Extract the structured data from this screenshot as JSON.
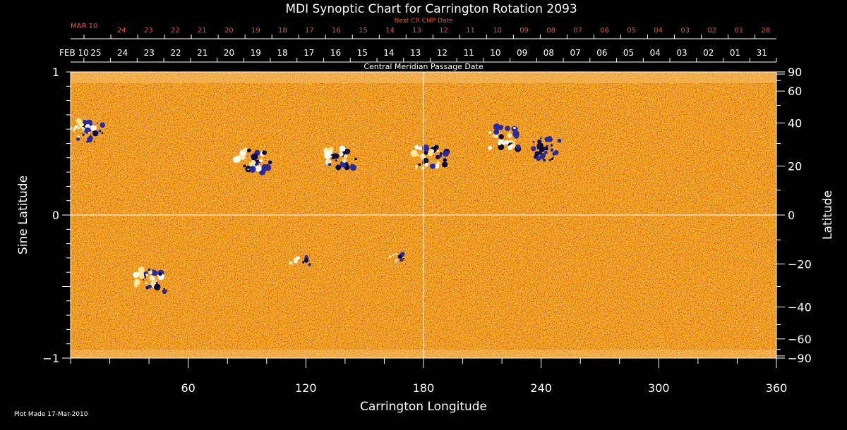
{
  "chart_data": {
    "type": "heatmap",
    "title": "MDI Synoptic Chart for Carrington Rotation 2093",
    "xlabel": "Carrington Longitude",
    "ylabel_left": "Sine Latitude",
    "ylabel_right": "Latitude",
    "xlim": [
      0,
      360
    ],
    "ylim": [
      -1,
      1
    ],
    "x_ticks": [
      60,
      120,
      180,
      240,
      300,
      360
    ],
    "y_ticks_left": [
      {
        "value": 1,
        "label": "1"
      },
      {
        "value": 0,
        "label": "0"
      },
      {
        "value": -1,
        "label": "−1"
      }
    ],
    "y_ticks_right": [
      {
        "value": 90,
        "label": "90"
      },
      {
        "value": 60,
        "label": "60"
      },
      {
        "value": 40,
        "label": "40"
      },
      {
        "value": 20,
        "label": "20"
      },
      {
        "value": 0,
        "label": "0"
      },
      {
        "value": -20,
        "label": "−20"
      },
      {
        "value": -40,
        "label": "−40"
      },
      {
        "value": -60,
        "label": "−60"
      },
      {
        "value": -90,
        "label": "−90"
      }
    ],
    "top_axis_cmp": {
      "start_label": "FEB 10",
      "labels": [
        "25",
        "24",
        "23",
        "22",
        "21",
        "20",
        "19",
        "18",
        "17",
        "16",
        "15",
        "14",
        "13",
        "12",
        "11",
        "10",
        "09",
        "08",
        "07",
        "06",
        "05",
        "04",
        "03",
        "02",
        "01",
        "31"
      ],
      "caption": "Central Meridian Passage Date"
    },
    "top_axis_next": {
      "start_label": "MAR 10",
      "labels": [
        "24",
        "23",
        "22",
        "21",
        "20",
        "19",
        "18",
        "17",
        "16",
        "15",
        "14",
        "13",
        "12",
        "11",
        "10",
        "09",
        "08",
        "07",
        "06",
        "05",
        "04",
        "03",
        "02",
        "01",
        "28"
      ],
      "caption": "Next CR CMP Date"
    },
    "gridlines": {
      "x": [
        180
      ],
      "y": [
        0
      ]
    },
    "colormap": "magnetogram: white = positive polarity, blue/black = negative polarity, orange-red = weak field",
    "active_regions": [
      {
        "lon": 7,
        "sinlat": 0.58,
        "kind": "bipolar"
      },
      {
        "lon": 93,
        "sinlat": 0.38,
        "kind": "bipolar"
      },
      {
        "lon": 137,
        "sinlat": 0.4,
        "kind": "bipolar"
      },
      {
        "lon": 183,
        "sinlat": 0.4,
        "kind": "bipolar"
      },
      {
        "lon": 222,
        "sinlat": 0.54,
        "kind": "bipolar"
      },
      {
        "lon": 240,
        "sinlat": 0.46,
        "kind": "negative"
      },
      {
        "lon": 42,
        "sinlat": -0.46,
        "kind": "bipolar"
      },
      {
        "lon": 117,
        "sinlat": -0.32,
        "kind": "small"
      },
      {
        "lon": 168,
        "sinlat": -0.3,
        "kind": "small"
      }
    ],
    "footer": "Plot Made 17-Mar-2010"
  }
}
